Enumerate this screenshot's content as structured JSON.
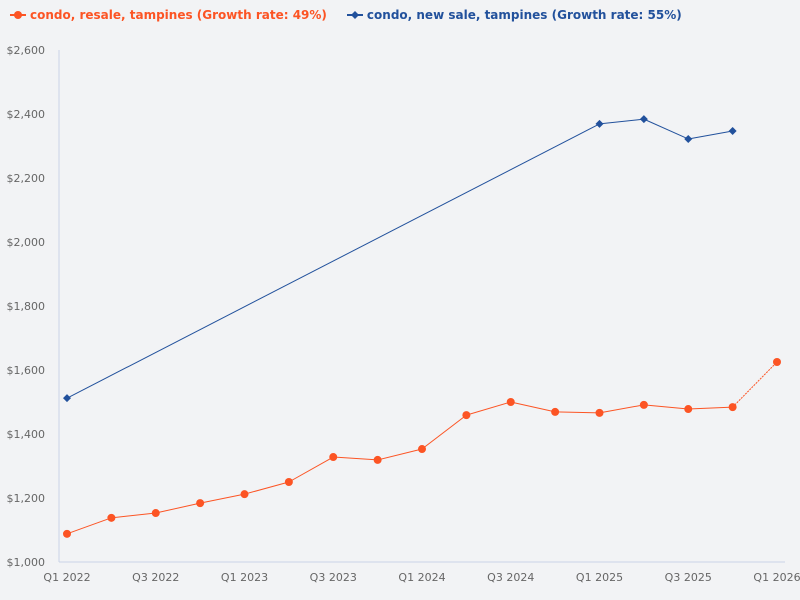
{
  "legend": [
    {
      "label": "condo, resale, tampines (Growth rate: 49%)",
      "color": "#fc5424",
      "marker": "circle"
    },
    {
      "label": "condo, new sale, tampines (Growth rate: 55%)",
      "color": "#22519c",
      "marker": "diamond"
    }
  ],
  "chart_data": {
    "type": "line",
    "title": "",
    "xlabel": "",
    "ylabel": "",
    "x": [
      "Q1 2022",
      "Q2 2022",
      "Q3 2022",
      "Q4 2022",
      "Q1 2023",
      "Q2 2023",
      "Q3 2023",
      "Q4 2023",
      "Q1 2024",
      "Q2 2024",
      "Q3 2024",
      "Q4 2024",
      "Q1 2025",
      "Q2 2025",
      "Q3 2025",
      "Q4 2025",
      "Q1 2026"
    ],
    "x_tick_labels": [
      "Q1 2022",
      "Q3 2022",
      "Q1 2023",
      "Q3 2023",
      "Q1 2024",
      "Q3 2024",
      "Q1 2025",
      "Q3 2025",
      "Q1 2026"
    ],
    "y_tick_labels": [
      "$1,000",
      "$1,200",
      "$1,400",
      "$1,600",
      "$1,800",
      "$2,000",
      "$2,200",
      "$2,400",
      "$2,600"
    ],
    "ylim": [
      1000,
      2600
    ],
    "grid": false,
    "legend_position": "top-left",
    "series": [
      {
        "name": "condo, resale, tampines (Growth rate: 49%)",
        "color": "#fc5424",
        "marker": "circle",
        "values": [
          1088,
          1138,
          1153,
          1184,
          1212,
          1250,
          1328,
          1319,
          1353,
          1459,
          1500,
          1469,
          1466,
          1491,
          1478,
          1484,
          1625
        ]
      },
      {
        "name": "condo, new sale, tampines (Growth rate: 55%)",
        "color": "#22519c",
        "marker": "diamond",
        "values": [
          1512,
          null,
          null,
          null,
          null,
          null,
          null,
          null,
          null,
          null,
          null,
          null,
          2369,
          2384,
          2322,
          2347,
          null
        ]
      }
    ]
  }
}
